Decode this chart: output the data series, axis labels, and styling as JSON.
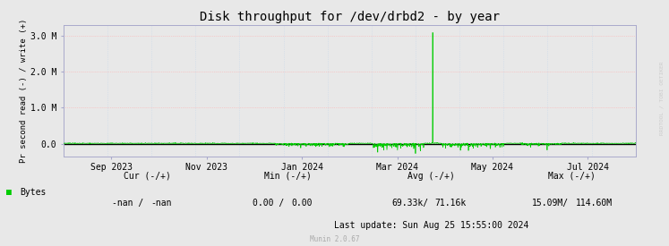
{
  "title": "Disk throughput for /dev/drbd2 - by year",
  "ylabel": "Pr second read (-) / write (+)",
  "background_color": "#e8e8e8",
  "plot_bg_color": "#e8e8e8",
  "grid_v_color": "#c8d8e8",
  "grid_h_color": "#ffb0b0",
  "line_color": "#00cc00",
  "zero_line_color": "#000000",
  "border_color": "#aaaacc",
  "ytick_labels": [
    "0.0",
    "1.0 M",
    "2.0 M",
    "3.0 M"
  ],
  "ytick_values": [
    0.0,
    1000000.0,
    2000000.0,
    3000000.0
  ],
  "ylim": [
    -350000,
    3300000
  ],
  "xlabel_dates": [
    "Sep 2023",
    "Nov 2023",
    "Jan 2024",
    "Mar 2024",
    "May 2024",
    "Jul 2024"
  ],
  "legend_label": "Bytes",
  "legend_color": "#00cc00",
  "table_row1": [
    "Cur (-/+)",
    "Min (-/+)",
    "Avg (-/+)",
    "Max (-/+)"
  ],
  "table_row2_left": [
    "-nan /",
    "0.00 /",
    "69.33k/",
    "15.09M/"
  ],
  "table_row2_right": [
    "-nan",
    "0.00",
    "71.16k",
    "114.60M"
  ],
  "last_update": "Last update: Sun Aug 25 15:55:00 2024",
  "munin_label": "Munin 2.0.67",
  "rrdfool_label": "RRDTOOL / TOBI OETIKER",
  "title_fontsize": 10,
  "axis_fontsize": 7,
  "tick_fontsize": 7
}
